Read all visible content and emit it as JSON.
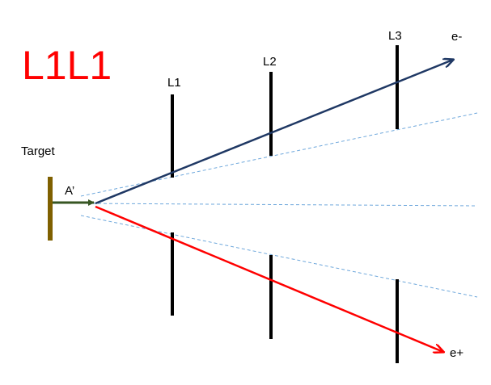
{
  "title": "L1L1",
  "labels": {
    "target": "Target",
    "a_prime": "A’",
    "layer1": "L1",
    "layer2": "L2",
    "layer3": "L3",
    "electron": "e-",
    "positron": "e+"
  },
  "colors": {
    "title": "#ff0000",
    "target": "#7f6000",
    "a_prime_arrow": "#375623",
    "electron_track": "#1f3864",
    "positron_track": "#ff0000",
    "layers": "#000000",
    "acceptance_lines": "#6fa8dc"
  }
}
